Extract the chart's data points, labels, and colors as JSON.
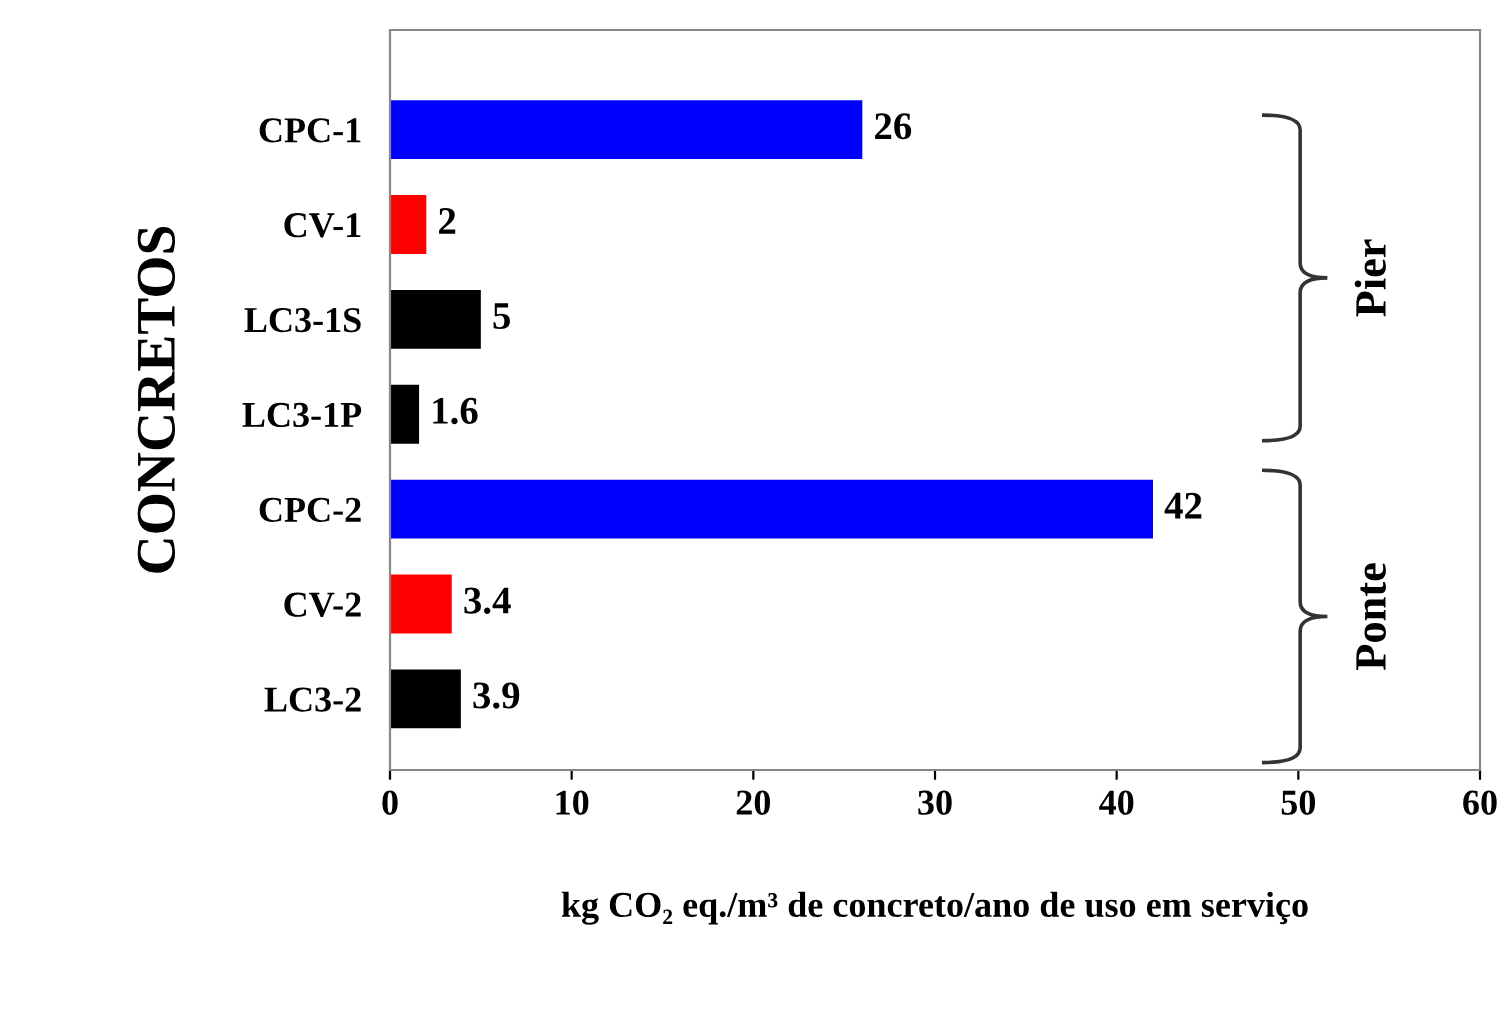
{
  "chart_data": {
    "type": "bar",
    "orientation": "horizontal",
    "categories": [
      "CPC-1",
      "CV-1",
      "LC3-1S",
      "LC3-1P",
      "CPC-2",
      "CV-2",
      "LC3-2"
    ],
    "values": [
      26,
      2,
      5,
      1.6,
      42,
      3.4,
      3.9
    ],
    "colors": [
      "#0000ff",
      "#ff0000",
      "#000000",
      "#000000",
      "#0000ff",
      "#ff0000",
      "#000000"
    ],
    "data_labels": true,
    "xlim": [
      0,
      60
    ],
    "xticks": [
      0,
      10,
      20,
      30,
      40,
      50,
      60
    ],
    "xlabel": "kg CO₂ eq./m³ de concreto/ano de uso em serviço",
    "ylabel": "CONCRETOS",
    "annotations": [
      "Pier",
      "Ponte"
    ],
    "grid": false,
    "legend": false
  }
}
